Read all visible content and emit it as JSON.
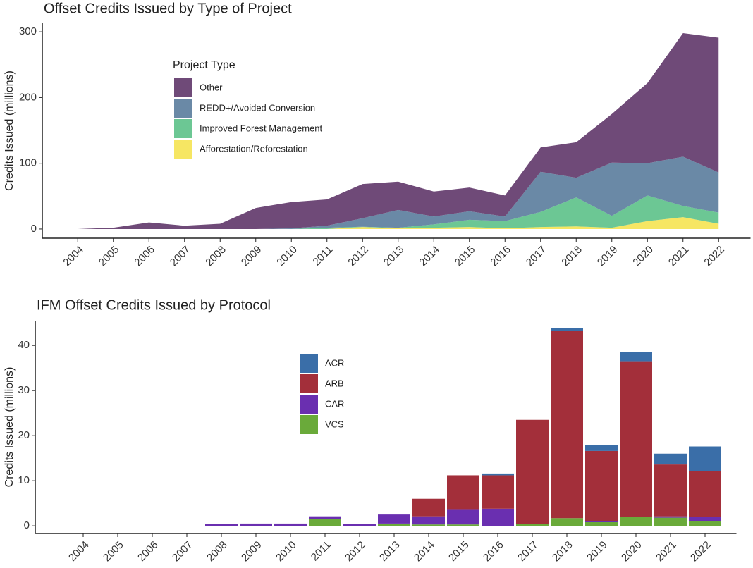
{
  "chart_data": [
    {
      "type": "area",
      "title": "Offset Credits Issued by Type of Project",
      "y_label": "Credits Issued (millions)",
      "legend_title": "Project Type",
      "categories": [
        "2004",
        "2005",
        "2006",
        "2007",
        "2008",
        "2009",
        "2010",
        "2011",
        "2012",
        "2013",
        "2014",
        "2015",
        "2016",
        "2017",
        "2018",
        "2019",
        "2020",
        "2021",
        "2022"
      ],
      "series": [
        {
          "name": "Other",
          "color": "#6f4a78",
          "values": [
            0,
            2,
            10,
            5,
            8,
            32,
            40,
            40,
            52,
            43,
            38,
            36,
            32,
            37,
            54,
            74,
            122,
            188,
            205
          ]
        },
        {
          "name": "REDD+/Avoided Conversion",
          "color": "#6a89a6",
          "values": [
            0,
            0,
            0,
            0,
            0,
            0,
            1,
            3,
            13,
            27,
            12,
            13,
            7,
            61,
            30,
            81,
            49,
            75,
            61
          ]
        },
        {
          "name": "Improved Forest Management",
          "color": "#6cc794",
          "values": [
            0,
            0,
            0,
            0,
            0,
            0,
            0,
            2,
            0.4,
            1,
            5,
            11,
            11,
            23,
            44,
            18,
            39,
            17,
            17
          ]
        },
        {
          "name": "Afforestation/Reforestation",
          "color": "#f6e663",
          "values": [
            0,
            0,
            0,
            0,
            0,
            0,
            0,
            0,
            3,
            1,
            2,
            3,
            1,
            3,
            4,
            2,
            12,
            18,
            8
          ]
        }
      ],
      "ylim": [
        -14,
        313
      ],
      "yticks": [
        0,
        100,
        200,
        300
      ]
    },
    {
      "type": "bar",
      "title": "IFM Offset Credits Issued by Protocol",
      "y_label": "Credits Issued (millions)",
      "categories": [
        "2004",
        "2005",
        "2006",
        "2007",
        "2008",
        "2009",
        "2010",
        "2011",
        "2012",
        "2013",
        "2014",
        "2015",
        "2016",
        "2017",
        "2018",
        "2019",
        "2020",
        "2021",
        "2022"
      ],
      "series": [
        {
          "name": "ACR",
          "color": "#3a6ea8",
          "values": [
            0,
            0,
            0,
            0,
            0,
            0,
            0,
            0,
            0,
            0,
            0,
            0,
            0.4,
            0,
            0.6,
            1.3,
            2.0,
            2.4,
            5.4
          ]
        },
        {
          "name": "ARB",
          "color": "#a32f3a",
          "values": [
            0,
            0,
            0,
            0,
            0,
            0,
            0,
            0,
            0,
            0,
            3.9,
            7.5,
            7.4,
            23.1,
            41.5,
            15.6,
            34.5,
            11.5,
            10.3
          ]
        },
        {
          "name": "CAR",
          "color": "#6a2fb0",
          "values": [
            0,
            0,
            0,
            0,
            0.4,
            0.5,
            0.5,
            0.6,
            0.4,
            2.0,
            1.8,
            3.4,
            3.8,
            0,
            0,
            0.2,
            0,
            0.3,
            0.8
          ]
        },
        {
          "name": "VCS",
          "color": "#6aaa3a",
          "values": [
            0,
            0,
            0,
            0,
            0,
            0,
            0,
            1.5,
            0,
            0.5,
            0.3,
            0.3,
            0,
            0.4,
            1.7,
            0.8,
            2.0,
            1.8,
            1.1
          ]
        }
      ],
      "ylim": [
        -1.7,
        45.5
      ],
      "yticks": [
        0,
        10,
        20,
        30,
        40
      ]
    }
  ]
}
